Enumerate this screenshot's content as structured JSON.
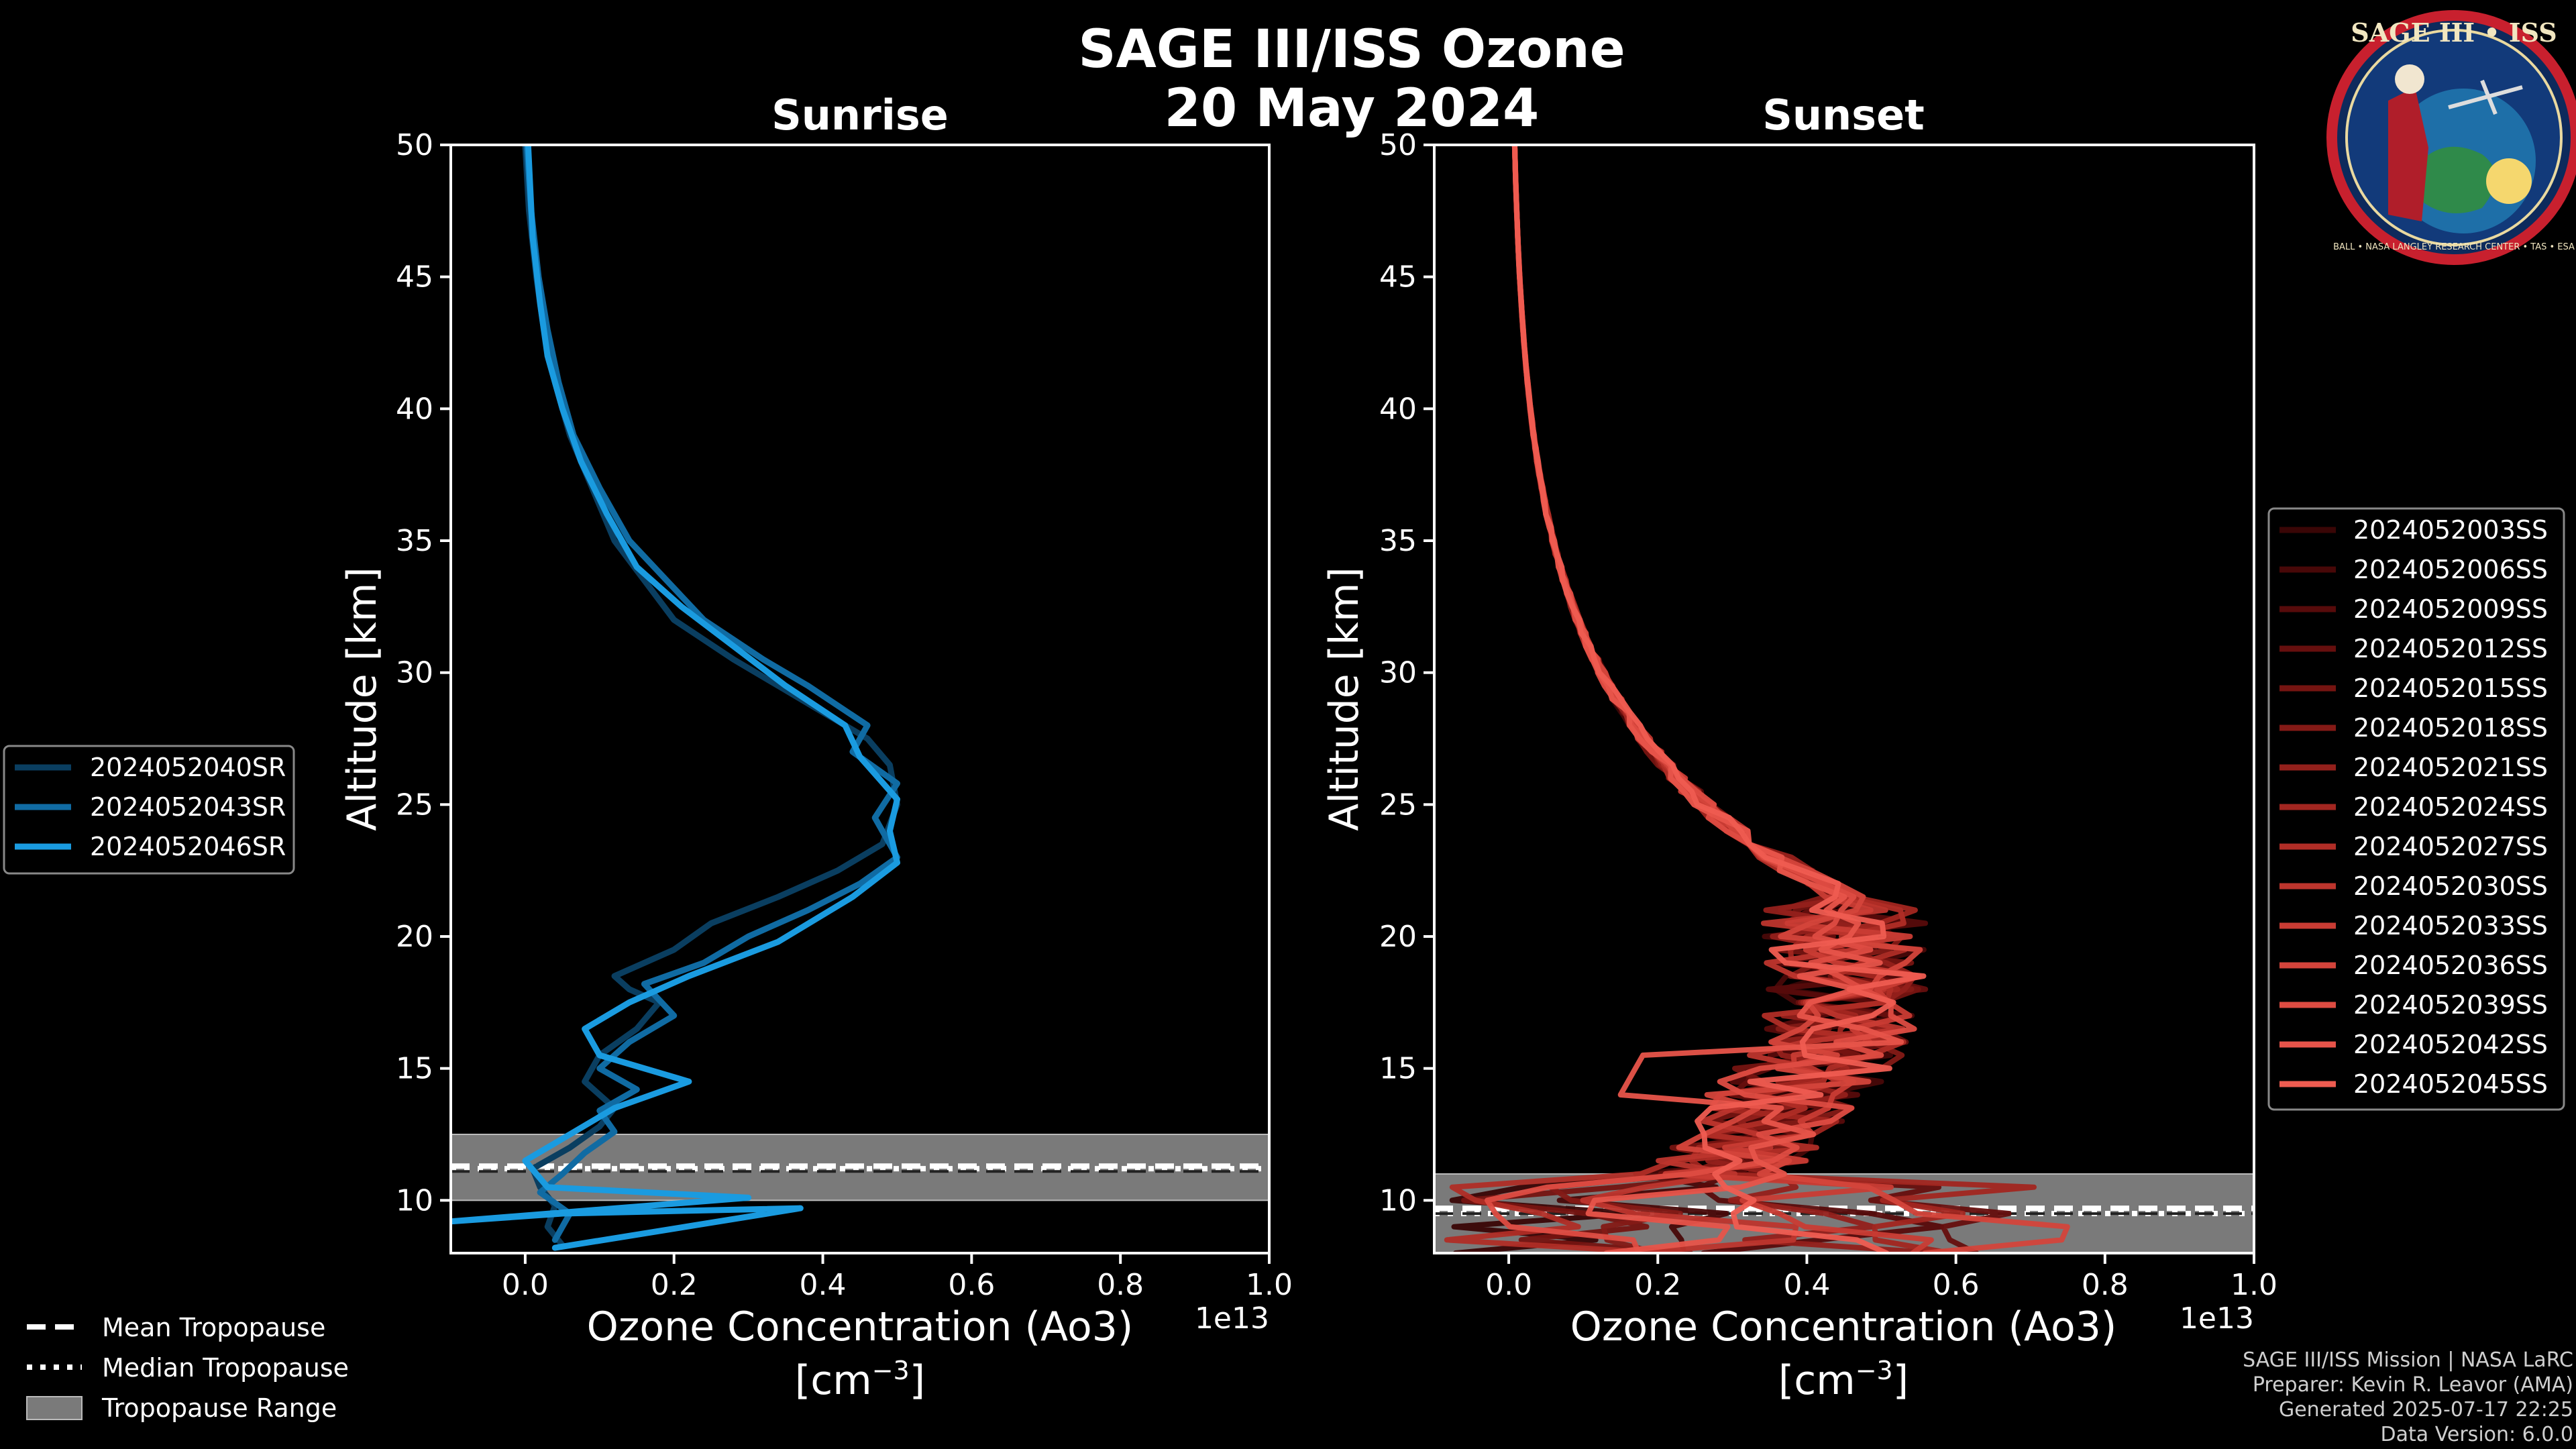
{
  "chart_data": {
    "type": "line",
    "title": "SAGE III/ISS Ozone",
    "subtitle": "20 May 2024",
    "x_scale_label": "1e13",
    "xlabel_line1": "Ozone Concentration (Ao3)",
    "xlabel_line2_prefix": "[cm",
    "xlabel_line2_sup": "−3",
    "xlabel_line2_suffix": "]",
    "ylabel": "Altitude [km]",
    "xlim": [
      -0.1,
      1.0
    ],
    "ylim": [
      8,
      50
    ],
    "xticks": [
      0.0,
      0.2,
      0.4,
      0.6,
      0.8,
      1.0
    ],
    "xtick_labels": [
      "0.0",
      "0.2",
      "0.4",
      "0.6",
      "0.8",
      "1.0"
    ],
    "yticks": [
      10,
      15,
      20,
      25,
      30,
      35,
      40,
      45,
      50
    ],
    "ytick_labels": [
      "10",
      "15",
      "20",
      "25",
      "30",
      "35",
      "40",
      "45",
      "50"
    ],
    "panels": [
      {
        "title": "Sunrise",
        "tropopause": {
          "mean": 11.3,
          "median": 11.2,
          "range": [
            10.0,
            12.5
          ]
        },
        "series": [
          {
            "name": "2024052040SR",
            "color": "#0a3e60",
            "x": [
              0.05,
              0.03,
              0.04,
              0.02,
              0.01,
              0.06,
              0.1,
              0.12,
              0.08,
              0.1,
              0.15,
              0.18,
              0.14,
              0.12,
              0.2,
              0.25,
              0.34,
              0.42,
              0.48,
              0.5,
              0.49,
              0.46,
              0.4,
              0.34,
              0.28,
              0.2,
              0.16,
              0.12,
              0.09,
              0.06,
              0.04,
              0.025,
              0.015,
              0.005,
              0.0
            ],
            "y": [
              8.3,
              9.0,
              9.8,
              10.5,
              11.2,
              12.0,
              12.8,
              13.5,
              14.5,
              15.5,
              16.5,
              17.5,
              18.0,
              18.5,
              19.5,
              20.5,
              21.5,
              22.5,
              23.5,
              25.0,
              26.5,
              27.5,
              28.5,
              29.5,
              30.5,
              32.0,
              33.5,
              35.0,
              37.0,
              39.0,
              41.0,
              43.0,
              45.0,
              47.5,
              50.0
            ]
          },
          {
            "name": "2024052043SR",
            "color": "#106ba3",
            "x": [
              0.04,
              0.06,
              0.02,
              0.05,
              0.08,
              0.12,
              0.1,
              0.15,
              0.1,
              0.14,
              0.2,
              0.16,
              0.24,
              0.3,
              0.38,
              0.45,
              0.5,
              0.47,
              0.5,
              0.44,
              0.46,
              0.38,
              0.32,
              0.24,
              0.19,
              0.14,
              0.1,
              0.065,
              0.045,
              0.03,
              0.018,
              0.008,
              0.002
            ],
            "y": [
              8.5,
              9.5,
              10.3,
              11.0,
              11.8,
              12.6,
              13.4,
              14.2,
              15.0,
              16.0,
              17.0,
              18.2,
              19.0,
              20.0,
              21.0,
              22.0,
              23.0,
              24.5,
              25.8,
              27.0,
              28.0,
              29.5,
              30.5,
              32.0,
              33.5,
              35.0,
              37.0,
              39.0,
              41.0,
              43.0,
              45.0,
              47.5,
              50.0
            ]
          },
          {
            "name": "2024052046SR",
            "color": "#1a9be0",
            "x": [
              0.04,
              0.37,
              0.05,
              -0.1,
              0.3,
              0.03,
              0.0,
              0.06,
              0.12,
              0.22,
              0.1,
              0.08,
              0.14,
              0.22,
              0.34,
              0.44,
              0.5,
              0.49,
              0.5,
              0.45,
              0.43,
              0.35,
              0.28,
              0.21,
              0.15,
              0.11,
              0.075,
              0.05,
              0.03,
              0.02,
              0.01,
              0.004
            ],
            "y": [
              8.2,
              9.7,
              9.5,
              9.2,
              10.1,
              10.5,
              11.5,
              12.5,
              13.5,
              14.5,
              15.5,
              16.5,
              17.5,
              18.5,
              19.8,
              21.5,
              22.8,
              24.0,
              25.2,
              26.8,
              28.0,
              29.5,
              31.0,
              32.5,
              34.0,
              36.0,
              38.0,
              40.0,
              42.0,
              44.0,
              46.5,
              50.0
            ]
          }
        ]
      },
      {
        "title": "Sunset",
        "tropopause": {
          "mean": 9.7,
          "median": 9.5,
          "range": [
            8.0,
            11.0
          ]
        },
        "series": [
          {
            "name": "2024052003SS",
            "color": "#3a0606"
          },
          {
            "name": "2024052006SS",
            "color": "#480808"
          },
          {
            "name": "2024052009SS",
            "color": "#570b0b"
          },
          {
            "name": "2024052012SS",
            "color": "#660f0e"
          },
          {
            "name": "2024052015SS",
            "color": "#751411"
          },
          {
            "name": "2024052018SS",
            "color": "#841a16"
          },
          {
            "name": "2024052021SS",
            "color": "#93201b"
          },
          {
            "name": "2024052024SS",
            "color": "#a22620"
          },
          {
            "name": "2024052027SS",
            "color": "#b02d26"
          },
          {
            "name": "2024052030SS",
            "color": "#bd352d"
          },
          {
            "name": "2024052033SS",
            "color": "#c93c34"
          },
          {
            "name": "2024052036SS",
            "color": "#d4443b"
          },
          {
            "name": "2024052039SS",
            "color": "#de4c42"
          },
          {
            "name": "2024052042SS",
            "color": "#e7544a"
          },
          {
            "name": "2024052045SS",
            "color": "#ef5c51"
          }
        ]
      }
    ]
  },
  "legend_tropopause": [
    "Mean Tropopause",
    "Median Tropopause",
    "Tropopause Range"
  ],
  "badge": {
    "title": "SAGE III • ISS",
    "ring": "BALL • NASA LANGLEY RESEARCH CENTER • TAS • ESA"
  },
  "footer": [
    "SAGE III/ISS Mission | NASA LaRC",
    "Preparer: Kevin R. Leavor (AMA)",
    "Generated 2025-07-17 22:25",
    "Data Version: 6.0.0"
  ]
}
